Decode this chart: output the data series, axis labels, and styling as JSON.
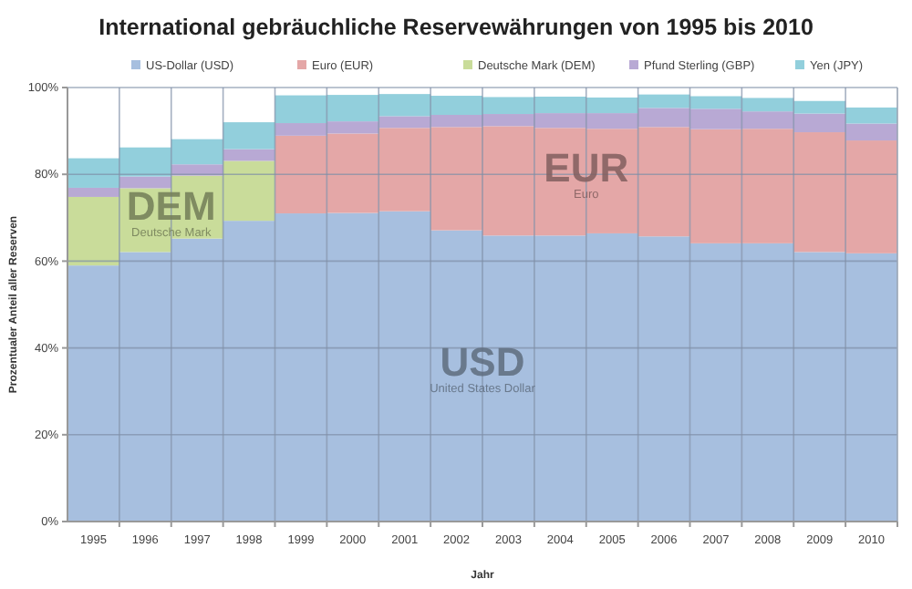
{
  "chart_data": {
    "type": "bar",
    "stacked": true,
    "title": "International gebräuchliche Reservewährungen von 1995 bis 2010",
    "xlabel": "Jahr",
    "ylabel": "Prozentualer Anteil aller Reserven",
    "categories": [
      "1995",
      "1996",
      "1997",
      "1998",
      "1999",
      "2000",
      "2001",
      "2002",
      "2003",
      "2004",
      "2005",
      "2006",
      "2007",
      "2008",
      "2009",
      "2010"
    ],
    "series": [
      {
        "name": "US-Dollar (USD)",
        "color": "#a7bfdf",
        "values": [
          59.0,
          62.1,
          65.2,
          69.3,
          71.0,
          71.1,
          71.5,
          67.1,
          65.9,
          65.9,
          66.4,
          65.7,
          64.1,
          64.1,
          62.1,
          61.8
        ]
      },
      {
        "name": "Euro (EUR)",
        "color": "#e4a7a7",
        "values": [
          null,
          null,
          null,
          null,
          17.9,
          18.3,
          19.2,
          23.8,
          25.2,
          24.8,
          24.1,
          25.2,
          26.3,
          26.4,
          27.6,
          26.0
        ]
      },
      {
        "name": "Deutsche Mark (DEM)",
        "color": "#c9dc9a",
        "values": [
          15.8,
          14.7,
          14.5,
          13.8,
          null,
          null,
          null,
          null,
          null,
          null,
          null,
          null,
          null,
          null,
          null,
          null
        ]
      },
      {
        "name": "Pfund Sterling (GBP)",
        "color": "#b8a9d4",
        "values": [
          2.1,
          2.7,
          2.6,
          2.7,
          2.9,
          2.8,
          2.7,
          2.8,
          2.8,
          3.4,
          3.6,
          4.4,
          4.7,
          4.0,
          4.3,
          3.9
        ]
      },
      {
        "name": "Yen (JPY)",
        "color": "#92cfdc",
        "values": [
          6.8,
          6.7,
          5.8,
          6.2,
          6.4,
          6.1,
          5.1,
          4.4,
          3.9,
          3.8,
          3.6,
          3.1,
          2.9,
          3.1,
          2.9,
          3.7
        ]
      }
    ],
    "ylim": [
      0,
      100
    ],
    "yticks": [
      {
        "value": 0,
        "label": "0%"
      },
      {
        "value": 20,
        "label": "20%"
      },
      {
        "value": 40,
        "label": "40%"
      },
      {
        "value": 60,
        "label": "60%"
      },
      {
        "value": 80,
        "label": "80%"
      },
      {
        "value": 100,
        "label": "100%"
      }
    ],
    "grid": "y",
    "legend": "top",
    "annotations": [
      "USD",
      "United States Dollar",
      "EUR",
      "Euro",
      "DEM",
      "Deutsche Mark"
    ]
  }
}
